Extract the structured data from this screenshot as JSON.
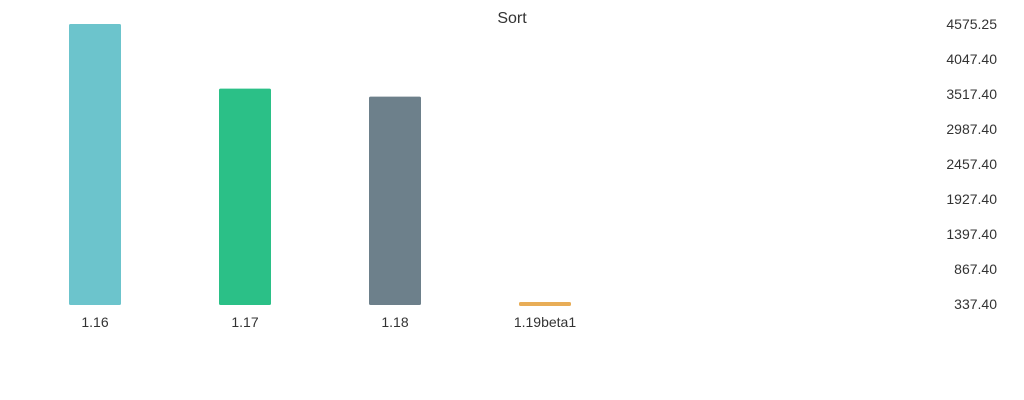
{
  "chart_data": {
    "type": "bar",
    "title": "Sort",
    "categories": [
      "1.16",
      "1.17",
      "1.18",
      "1.19beta1"
    ],
    "values": [
      4575.25,
      3600,
      3480,
      380
    ],
    "colors": [
      "#6cc4cc",
      "#2bc087",
      "#6d808b",
      "#e8ad57"
    ],
    "y_ticks": [
      "4575.25",
      "4047.40",
      "3517.40",
      "2987.40",
      "2457.40",
      "1927.40",
      "1397.40",
      "867.40",
      "337.40"
    ],
    "ylim": [
      337.4,
      4575.25
    ],
    "yaxis_position": "right",
    "grid": false,
    "legend": "none",
    "xlabel": "",
    "ylabel": ""
  }
}
